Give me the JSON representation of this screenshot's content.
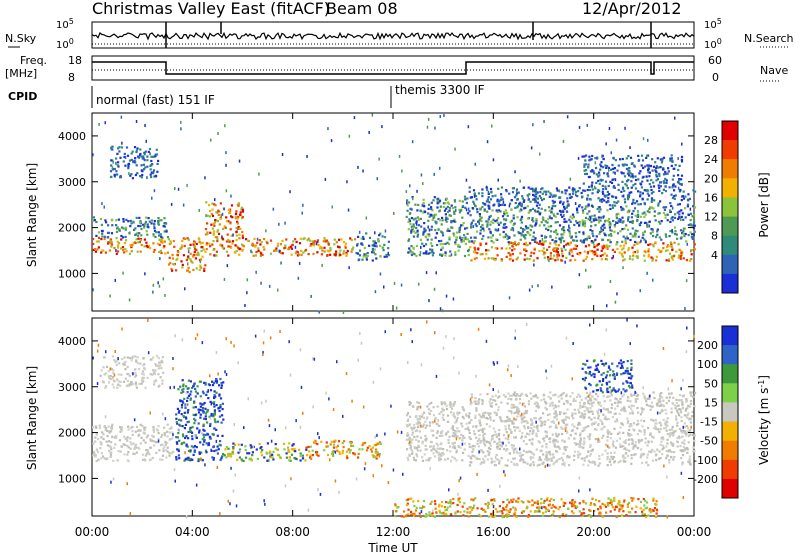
{
  "header": {
    "title": "Christmas Valley East (fitACF)",
    "beam": "Beam 08",
    "date": "12/Apr/2012"
  },
  "strips": {
    "nsky_label": "N.Sky",
    "nsearch_label": "N.Search",
    "nsky_ticks": [
      "10^5",
      "10^0"
    ],
    "nsearch_ticks": [
      "10^5",
      "10^0"
    ],
    "freq_label": "Freq.",
    "freq_unit": "[MHz]",
    "freq_ticks": [
      "18",
      "8"
    ],
    "nave_label": "Nave",
    "nave_ticks": [
      "60",
      "0"
    ],
    "cpid_label": "CPID",
    "cpid_segments": [
      {
        "label": "normal (fast) 151 IF",
        "start_hour": 0,
        "end_hour": 12
      },
      {
        "label": "themis 3300 IF",
        "start_hour": 12,
        "end_hour": 24
      }
    ]
  },
  "x_axis": {
    "label": "Time UT",
    "ticks": [
      "00:00",
      "04:00",
      "08:00",
      "12:00",
      "16:00",
      "20:00",
      "00:00"
    ]
  },
  "chart_data": [
    {
      "type": "heatmap",
      "name": "power",
      "ylabel": "Slant Range [km]",
      "yticks": [
        "1000",
        "2000",
        "3000",
        "4000"
      ],
      "ylim": [
        180,
        4500
      ],
      "xlim_hours": [
        0,
        24
      ],
      "colorbar": {
        "label": "Power [dB]",
        "ticks": [
          "4",
          "8",
          "12",
          "16",
          "20",
          "24",
          "28"
        ],
        "colors": [
          "#1a2fd6",
          "#2f63b8",
          "#2f8a7a",
          "#4e9a54",
          "#8bc43a",
          "#f2b100",
          "#f07d00",
          "#f03c00",
          "#e00000"
        ]
      },
      "bands": [
        {
          "hour_start": 0.0,
          "hour_end": 3.0,
          "range_km": [
            1450,
            1800
          ],
          "level": "high"
        },
        {
          "hour_start": 0.0,
          "hour_end": 3.0,
          "range_km": [
            1800,
            2250
          ],
          "level": "mid"
        },
        {
          "hour_start": 0.7,
          "hour_end": 2.6,
          "range_km": [
            3100,
            3800
          ],
          "level": "low"
        },
        {
          "hour_start": 3.0,
          "hour_end": 4.5,
          "range_km": [
            1050,
            1800
          ],
          "level": "high"
        },
        {
          "hour_start": 4.5,
          "hour_end": 6.0,
          "range_km": [
            1400,
            2600
          ],
          "level": "high"
        },
        {
          "hour_start": 6.0,
          "hour_end": 10.5,
          "range_km": [
            1400,
            1800
          ],
          "level": "high"
        },
        {
          "hour_start": 10.5,
          "hour_end": 11.8,
          "range_km": [
            1300,
            1900
          ],
          "level": "mid"
        },
        {
          "hour_start": 12.5,
          "hour_end": 15.0,
          "range_km": [
            1400,
            2700
          ],
          "level": "mid"
        },
        {
          "hour_start": 15.0,
          "hour_end": 24.0,
          "range_km": [
            1300,
            1700
          ],
          "level": "high"
        },
        {
          "hour_start": 15.0,
          "hour_end": 24.0,
          "range_km": [
            1700,
            2500
          ],
          "level": "mid"
        },
        {
          "hour_start": 15.0,
          "hour_end": 24.0,
          "range_km": [
            2500,
            2900
          ],
          "level": "low"
        },
        {
          "hour_start": 19.5,
          "hour_end": 23.5,
          "range_km": [
            2900,
            3600
          ],
          "level": "low"
        }
      ]
    },
    {
      "type": "heatmap",
      "name": "velocity",
      "ylabel": "Slant Range [km]",
      "yticks": [
        "1000",
        "2000",
        "3000",
        "4000"
      ],
      "ylim": [
        180,
        4500
      ],
      "xlim_hours": [
        0,
        24
      ],
      "colorbar": {
        "label": "Velocity [m s^-1]",
        "ticks": [
          "200",
          "100",
          "50",
          "15",
          "-15",
          "-50",
          "-100",
          "-200"
        ],
        "colors": [
          "#1a2fd6",
          "#2f63c8",
          "#3c9a3c",
          "#7ed04a",
          "#c8c8c0",
          "#f2b100",
          "#f07d00",
          "#f03c00",
          "#e00000"
        ]
      },
      "bands": [
        {
          "hour_start": 0.0,
          "hour_end": 3.2,
          "range_km": [
            1400,
            2200
          ],
          "level": "ground"
        },
        {
          "hour_start": 0.3,
          "hour_end": 2.8,
          "range_km": [
            3000,
            3700
          ],
          "level": "ground"
        },
        {
          "hour_start": 3.3,
          "hour_end": 5.2,
          "range_km": [
            1400,
            3200
          ],
          "level": "positive"
        },
        {
          "hour_start": 5.2,
          "hour_end": 8.5,
          "range_km": [
            1400,
            1800
          ],
          "level": "green"
        },
        {
          "hour_start": 8.5,
          "hour_end": 11.5,
          "range_km": [
            1450,
            1850
          ],
          "level": "negative"
        },
        {
          "hour_start": 12.5,
          "hour_end": 15.0,
          "range_km": [
            1400,
            2700
          ],
          "level": "ground"
        },
        {
          "hour_start": 15.0,
          "hour_end": 24.0,
          "range_km": [
            1300,
            2900
          ],
          "level": "ground"
        },
        {
          "hour_start": 19.5,
          "hour_end": 21.5,
          "range_km": [
            2900,
            3600
          ],
          "level": "positive"
        },
        {
          "hour_start": 12.0,
          "hour_end": 22.5,
          "range_km": [
            180,
            600
          ],
          "level": "negative"
        }
      ]
    }
  ]
}
